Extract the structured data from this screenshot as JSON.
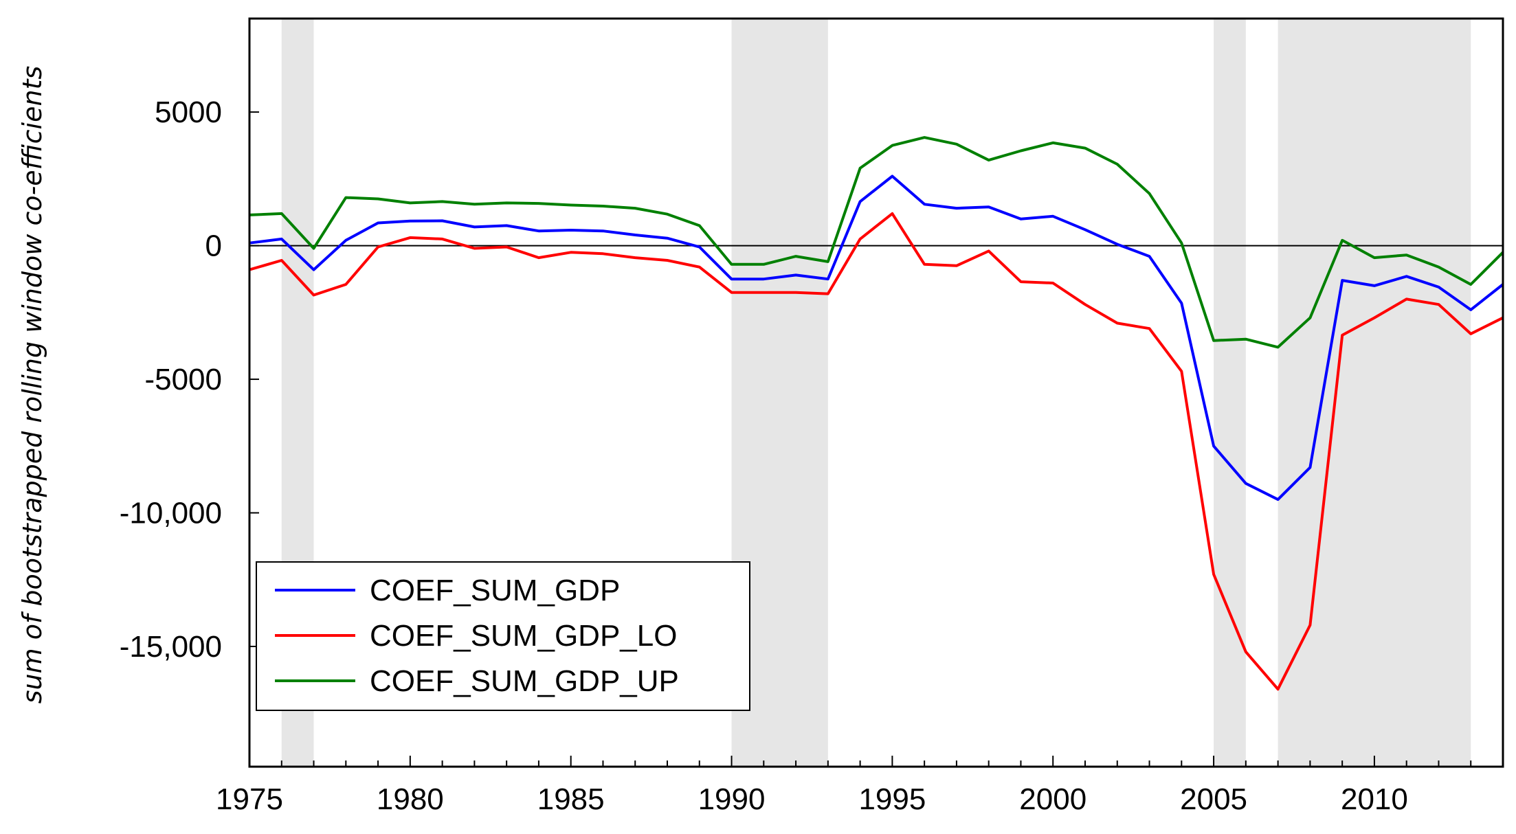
{
  "chart_data": {
    "type": "line",
    "title": "",
    "xlabel": "",
    "ylabel": "sum of bootstrapped rolling window co-efficients",
    "xlim": [
      1975,
      2014
    ],
    "ylim": [
      -19500,
      8500
    ],
    "x_ticks": [
      1975,
      1980,
      1985,
      1990,
      1995,
      2000,
      2005,
      2010
    ],
    "x_tick_labels": [
      "1975",
      "1980",
      "1985",
      "1990",
      "1995",
      "2000",
      "2005",
      "2010"
    ],
    "y_ticks": [
      5000,
      0,
      -5000,
      -10000,
      -15000
    ],
    "y_tick_labels": [
      "5000",
      "0",
      "-5000",
      "-10,000",
      "-15,000"
    ],
    "zero_line": true,
    "shaded_periods": [
      [
        1976,
        1977
      ],
      [
        1990,
        1993
      ],
      [
        2005,
        2006
      ],
      [
        2007,
        2013
      ]
    ],
    "shade_color": "#e6e6e6",
    "legend_position": "bottom-left",
    "x": [
      1975,
      1976,
      1977,
      1978,
      1979,
      1980,
      1981,
      1982,
      1983,
      1984,
      1985,
      1986,
      1987,
      1988,
      1989,
      1990,
      1991,
      1992,
      1993,
      1994,
      1995,
      1996,
      1997,
      1998,
      1999,
      2000,
      2001,
      2002,
      2003,
      2004,
      2005,
      2006,
      2007,
      2008,
      2009,
      2010,
      2011,
      2012,
      2013,
      2014
    ],
    "series": [
      {
        "name": "COEF_SUM_GDP",
        "color": "#0000ff",
        "values": [
          100,
          250,
          -900,
          200,
          850,
          920,
          930,
          700,
          750,
          550,
          580,
          550,
          400,
          280,
          -50,
          -1250,
          -1250,
          -1100,
          -1250,
          1650,
          2600,
          1550,
          1400,
          1450,
          1000,
          1100,
          600,
          50,
          -400,
          -2150,
          -7500,
          -8900,
          -9500,
          -8300,
          -1300,
          -1500,
          -1150,
          -1550,
          -2400,
          -1450
        ]
      },
      {
        "name": "COEF_SUM_GDP_LO",
        "color": "#ff0000",
        "values": [
          -900,
          -550,
          -1850,
          -1450,
          -50,
          300,
          250,
          -100,
          -50,
          -450,
          -250,
          -300,
          -450,
          -550,
          -800,
          -1750,
          -1750,
          -1750,
          -1800,
          250,
          1200,
          -700,
          -750,
          -200,
          -1350,
          -1400,
          -2200,
          -2900,
          -3100,
          -4700,
          -12300,
          -15200,
          -16600,
          -14200,
          -3350,
          -2700,
          -2000,
          -2200,
          -3300,
          -2700
        ]
      },
      {
        "name": "COEF_SUM_GDP_UP",
        "color": "#008000",
        "values": [
          1150,
          1200,
          -100,
          1800,
          1750,
          1600,
          1650,
          1550,
          1600,
          1580,
          1520,
          1480,
          1400,
          1180,
          750,
          -700,
          -700,
          -400,
          -600,
          2900,
          3750,
          4050,
          3800,
          3200,
          3550,
          3850,
          3650,
          3050,
          1950,
          100,
          -3550,
          -3500,
          -3800,
          -2700,
          200,
          -450,
          -350,
          -800,
          -1450,
          -250
        ]
      }
    ]
  }
}
